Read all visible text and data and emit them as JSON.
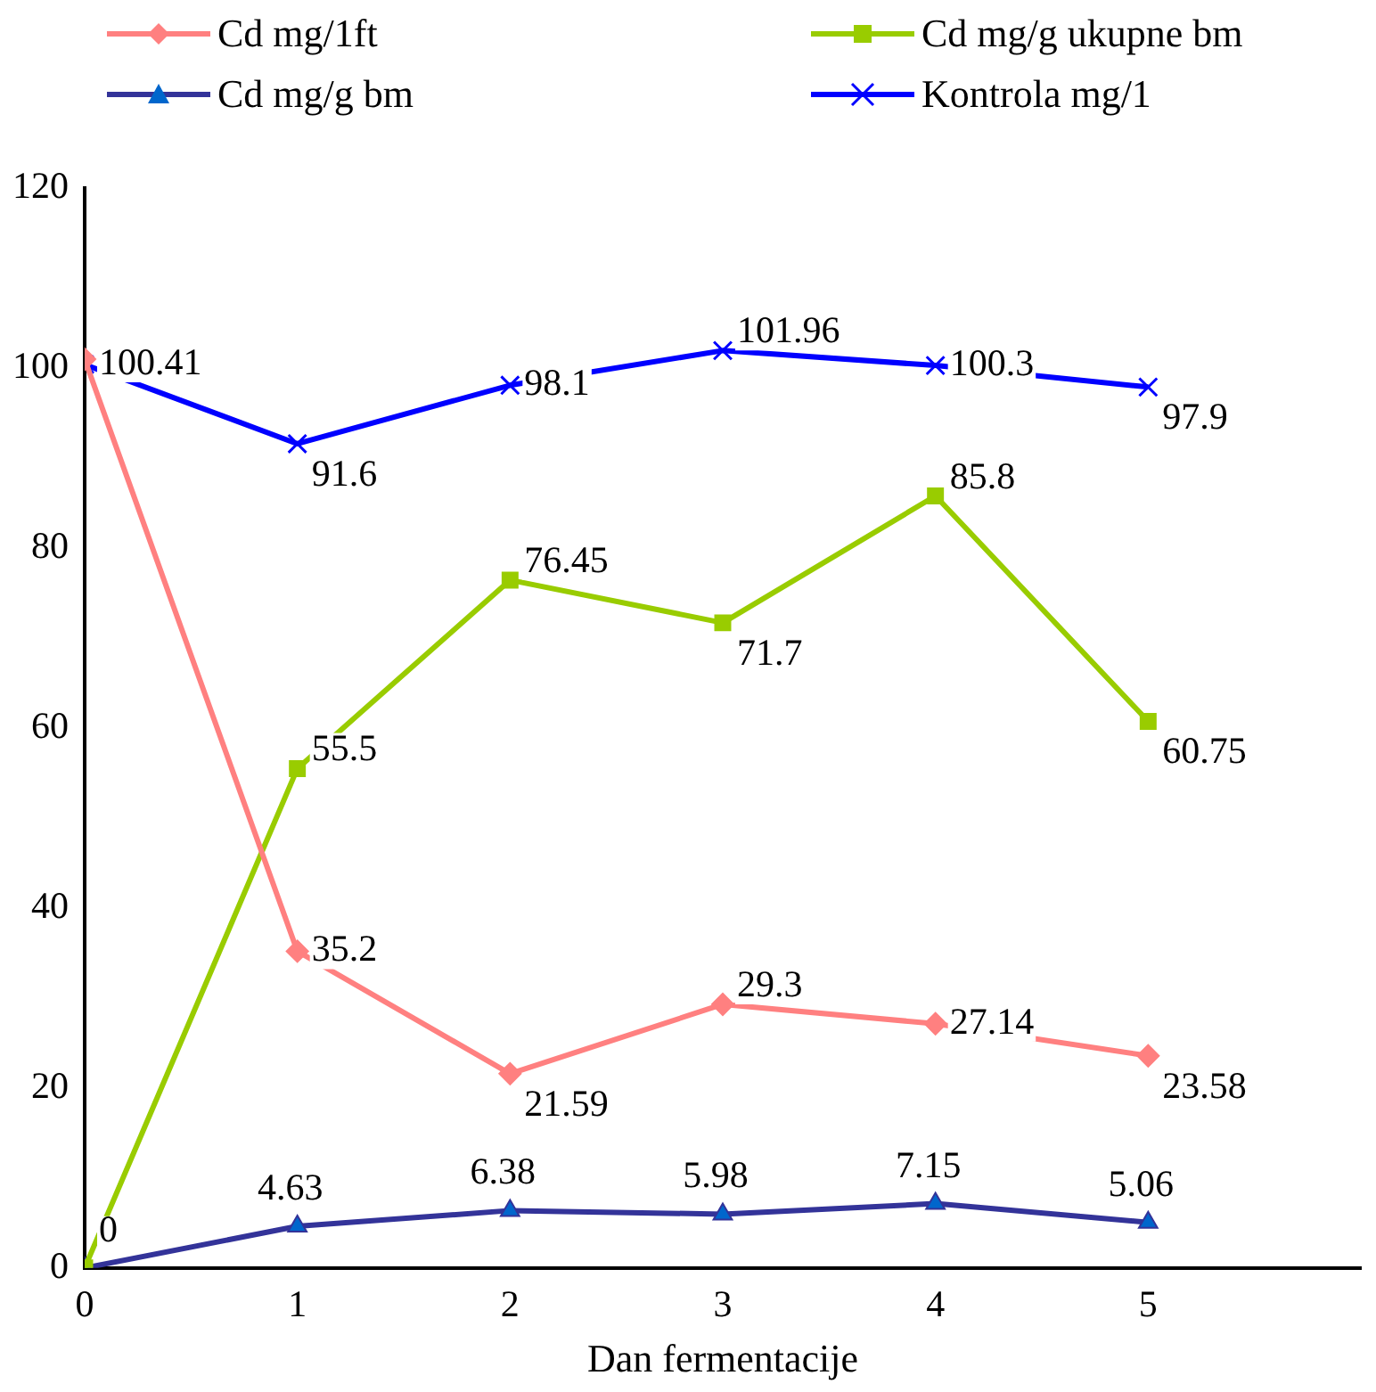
{
  "chart_data": {
    "type": "line",
    "xlabel": "Dan fermentacije",
    "x": [
      0,
      1,
      2,
      3,
      4,
      5
    ],
    "xlim": [
      0,
      6
    ],
    "xticks": [
      0,
      1,
      2,
      3,
      4,
      5
    ],
    "ylim": [
      0,
      120
    ],
    "yticks": [
      0,
      20,
      40,
      60,
      80,
      100,
      120
    ],
    "grid": false,
    "legend": "top",
    "line_style": "solid",
    "series": [
      {
        "name": "Cd mg/1ft",
        "color": "#ff8080",
        "marker": "diamond",
        "values": [
          101,
          35.2,
          21.59,
          29.3,
          27.14,
          23.58
        ],
        "value_labels": [
          null,
          "35.2",
          "21.59",
          "29.3",
          "27.14",
          "23.58"
        ]
      },
      {
        "name": "Cd mg/g ukupne bm",
        "color": "#99cc00",
        "marker": "square",
        "values": [
          0,
          55.5,
          76.45,
          71.7,
          85.8,
          60.75
        ],
        "value_labels": [
          null,
          "55.5",
          "76.45",
          "71.7",
          "85.8",
          "60.75"
        ]
      },
      {
        "name": "Cd mg/g bm",
        "color": "#333399",
        "marker": "triangle",
        "values": [
          0,
          4.63,
          6.38,
          5.98,
          7.15,
          5.06
        ],
        "value_labels": [
          "0",
          "4.63",
          "6.38",
          "5.98",
          "7.15",
          "5.06"
        ]
      },
      {
        "name": "Kontrola mg/1",
        "color": "#0000ff",
        "marker": "cross",
        "values": [
          100.41,
          91.6,
          98.1,
          101.96,
          100.3,
          97.9
        ],
        "value_labels": [
          "100.41",
          "91.6",
          "98.1",
          "101.96",
          "100.3",
          "97.9"
        ]
      }
    ]
  }
}
